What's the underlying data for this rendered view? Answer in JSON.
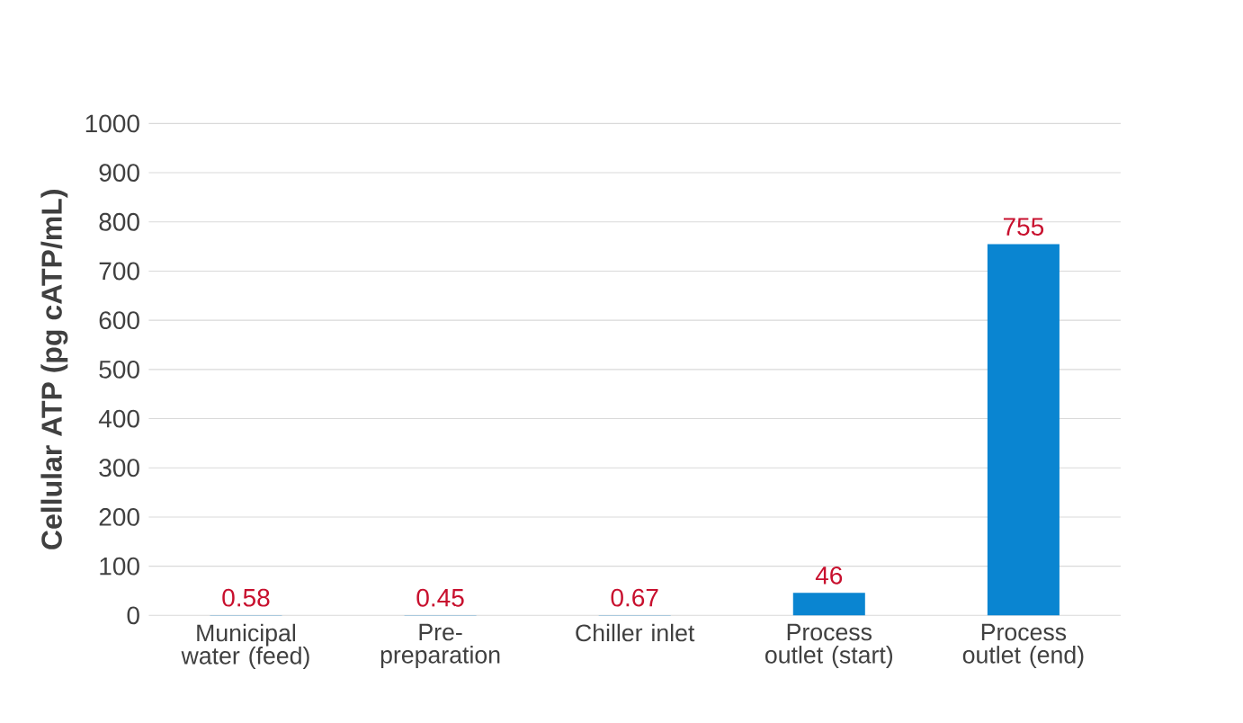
{
  "chart_data": {
    "type": "bar",
    "ylabel": "Cellular ATP (pg cATP/mL)",
    "categories": [
      "Municipal water (feed)",
      "Pre-preparation",
      "Chiller inlet",
      "Process outlet (start)",
      "Process outlet (end)"
    ],
    "values": [
      0.58,
      0.45,
      0.67,
      46,
      755
    ],
    "color": "#0a85d1",
    "data_labels": true,
    "ylim": [
      0,
      1000
    ],
    "yticks": [
      0,
      100,
      200,
      300,
      400,
      500,
      600,
      700,
      800,
      900,
      1000
    ],
    "grid": "y"
  }
}
